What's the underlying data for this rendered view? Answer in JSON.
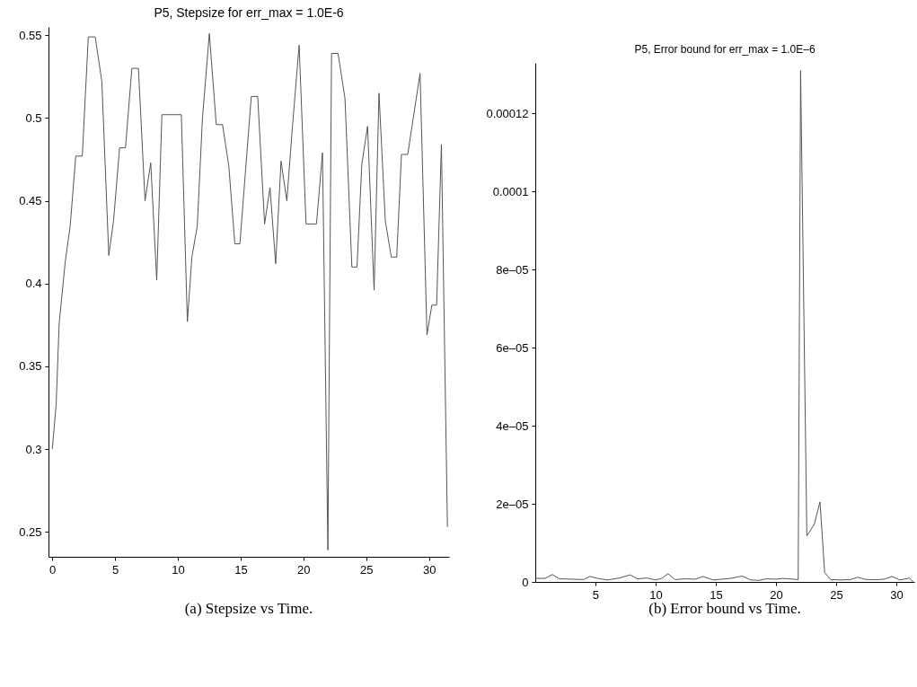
{
  "chart_data": [
    {
      "type": "line",
      "title": "P5, Stepsize for err_max = 1.0E-6",
      "annotations": [
        "(a) Stepsize vs Time."
      ],
      "color": "#555555",
      "x": [
        0,
        0.31,
        0.55,
        1.03,
        1.43,
        1.87,
        2.39,
        2.87,
        3.42,
        3.95,
        4.5,
        4.88,
        5.36,
        5.83,
        6.34,
        6.86,
        7.39,
        7.84,
        8.32,
        8.73,
        10.28,
        10.76,
        11.12,
        11.55,
        11.96,
        12.51,
        13.06,
        13.56,
        14.06,
        14.54,
        14.94,
        15.85,
        16.36,
        16.91,
        17.34,
        17.79,
        18.22,
        18.68,
        19.13,
        19.66,
        20.21,
        21.04,
        21.52,
        21.95,
        22.24,
        22.76,
        23.31,
        23.86,
        24.27,
        24.65,
        25.11,
        25.63,
        26.02,
        26.52,
        27.0,
        27.43,
        27.81,
        28.31,
        29.29,
        29.84,
        30.23,
        30.61,
        30.99,
        31.47
      ],
      "values": [
        0.3,
        0.327,
        0.376,
        0.413,
        0.435,
        0.477,
        0.477,
        0.549,
        0.549,
        0.522,
        0.417,
        0.438,
        0.482,
        0.482,
        0.53,
        0.53,
        0.45,
        0.473,
        0.402,
        0.502,
        0.502,
        0.377,
        0.416,
        0.435,
        0.5,
        0.551,
        0.496,
        0.496,
        0.471,
        0.424,
        0.424,
        0.513,
        0.513,
        0.436,
        0.458,
        0.412,
        0.474,
        0.45,
        0.495,
        0.544,
        0.436,
        0.436,
        0.479,
        0.239,
        0.539,
        0.539,
        0.512,
        0.41,
        0.41,
        0.472,
        0.495,
        0.396,
        0.515,
        0.438,
        0.416,
        0.416,
        0.478,
        0.478,
        0.527,
        0.369,
        0.387,
        0.387,
        0.484,
        0.253
      ],
      "xlim": [
        -0.3,
        31.6
      ],
      "ylim": [
        0.235,
        0.555
      ],
      "xticks": [
        0,
        5,
        10,
        15,
        20,
        25,
        30
      ],
      "yticks": [
        0.25,
        0.3,
        0.35,
        0.4,
        0.45,
        0.5,
        0.55
      ]
    },
    {
      "type": "line",
      "title": "P5, Error bound for err_max = 1.0E–6",
      "annotations": [
        "(b) Error bound vs Time."
      ],
      "color": "#555555",
      "x": [
        0,
        0.8,
        1.42,
        2.0,
        3.0,
        4.0,
        4.53,
        5.2,
        6.0,
        7.0,
        7.89,
        8.5,
        9.3,
        10.0,
        10.5,
        11.04,
        11.6,
        12.5,
        13.3,
        13.93,
        14.8,
        15.5,
        16.2,
        17.2,
        17.9,
        18.6,
        19.2,
        20.0,
        20.6,
        21.85,
        22.05,
        22.57,
        23.19,
        23.66,
        24.05,
        24.55,
        25.4,
        26.2,
        26.8,
        27.5,
        28.5,
        29.0,
        29.65,
        30.3,
        31.1,
        31.4
      ],
      "values": [
        9e-07,
        9e-07,
        1.9e-06,
        8e-07,
        7e-07,
        6e-07,
        1.4e-06,
        9e-07,
        5e-07,
        1e-06,
        1.8e-06,
        8e-07,
        1e-06,
        5e-07,
        9e-07,
        2.1e-06,
        6e-07,
        8e-07,
        7e-07,
        1.4e-06,
        5e-07,
        7e-07,
        9e-07,
        1.5e-06,
        5e-07,
        4e-07,
        8e-07,
        7e-07,
        9e-07,
        6e-07,
        0.000131,
        1.18e-05,
        1.48e-05,
        2.05e-05,
        2.4e-06,
        6e-07,
        5e-07,
        6e-07,
        1.2e-06,
        6e-07,
        6e-07,
        7e-07,
        1.4e-06,
        5e-07,
        1e-06,
        0
      ],
      "xlim": [
        0,
        31.5
      ],
      "ylim": [
        0,
        0.000133
      ],
      "xticks": [
        5,
        10,
        15,
        20,
        25,
        30
      ],
      "yticks": [
        0,
        {
          "value": 2e-05,
          "label": "2e–05"
        },
        {
          "value": 4e-05,
          "label": "4e–05"
        },
        {
          "value": 6e-05,
          "label": "6e–05"
        },
        {
          "value": 8e-05,
          "label": "8e–05"
        },
        0.0001,
        0.00012
      ]
    }
  ]
}
